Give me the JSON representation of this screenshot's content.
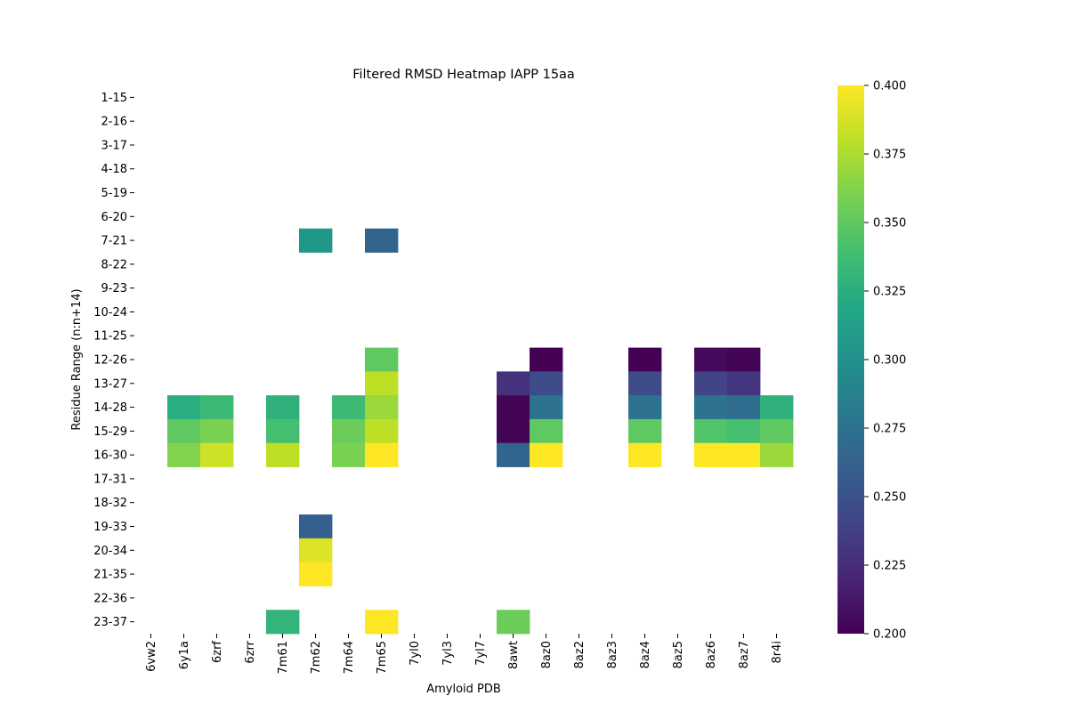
{
  "chart_data": {
    "type": "heatmap",
    "title": "Filtered RMSD Heatmap IAPP 15aa",
    "xlabel": "Amyloid PDB",
    "ylabel": "Residue Range (n:n+14)",
    "x_categories": [
      "6vw2",
      "6y1a",
      "6zrf",
      "6zrr",
      "7m61",
      "7m62",
      "7m64",
      "7m65",
      "7yl0",
      "7yl3",
      "7yl7",
      "8awt",
      "8az0",
      "8az2",
      "8az3",
      "8az4",
      "8az5",
      "8az6",
      "8az7",
      "8r4i"
    ],
    "y_categories": [
      "1-15",
      "2-16",
      "3-17",
      "4-18",
      "5-19",
      "6-20",
      "7-21",
      "8-22",
      "9-23",
      "10-24",
      "11-25",
      "12-26",
      "13-27",
      "14-28",
      "15-29",
      "16-30",
      "17-31",
      "18-32",
      "19-33",
      "20-34",
      "21-35",
      "22-36",
      "23-37"
    ],
    "colormap": "viridis",
    "colorbar": {
      "vmin": 0.2,
      "vmax": 0.4,
      "ticks": [
        0.2,
        0.225,
        0.25,
        0.275,
        0.3,
        0.325,
        0.35,
        0.375,
        0.4
      ],
      "tick_labels": [
        "0.200",
        "0.225",
        "0.250",
        "0.275",
        "0.300",
        "0.325",
        "0.350",
        "0.375",
        "0.400"
      ]
    },
    "cells": [
      {
        "row": "7-21",
        "col": "7m62",
        "value": 0.305
      },
      {
        "row": "7-21",
        "col": "7m65",
        "value": 0.265
      },
      {
        "row": "12-26",
        "col": "7m65",
        "value": 0.35
      },
      {
        "row": "12-26",
        "col": "8az0",
        "value": 0.2
      },
      {
        "row": "12-26",
        "col": "8az4",
        "value": 0.2
      },
      {
        "row": "12-26",
        "col": "8az6",
        "value": 0.205
      },
      {
        "row": "12-26",
        "col": "8az7",
        "value": 0.202
      },
      {
        "row": "13-27",
        "col": "7m65",
        "value": 0.38
      },
      {
        "row": "13-27",
        "col": "8awt",
        "value": 0.228
      },
      {
        "row": "13-27",
        "col": "8az0",
        "value": 0.245
      },
      {
        "row": "13-27",
        "col": "8az4",
        "value": 0.245
      },
      {
        "row": "13-27",
        "col": "8az6",
        "value": 0.24
      },
      {
        "row": "13-27",
        "col": "8az7",
        "value": 0.232
      },
      {
        "row": "14-28",
        "col": "6y1a",
        "value": 0.325
      },
      {
        "row": "14-28",
        "col": "6zrf",
        "value": 0.335
      },
      {
        "row": "14-28",
        "col": "7m61",
        "value": 0.328
      },
      {
        "row": "14-28",
        "col": "7m64",
        "value": 0.335
      },
      {
        "row": "14-28",
        "col": "7m65",
        "value": 0.37
      },
      {
        "row": "14-28",
        "col": "8awt",
        "value": 0.202
      },
      {
        "row": "14-28",
        "col": "8az0",
        "value": 0.275
      },
      {
        "row": "14-28",
        "col": "8az4",
        "value": 0.275
      },
      {
        "row": "14-28",
        "col": "8az6",
        "value": 0.275
      },
      {
        "row": "14-28",
        "col": "8az7",
        "value": 0.27
      },
      {
        "row": "14-28",
        "col": "8r4i",
        "value": 0.328
      },
      {
        "row": "15-29",
        "col": "6y1a",
        "value": 0.35
      },
      {
        "row": "15-29",
        "col": "6zrf",
        "value": 0.36
      },
      {
        "row": "15-29",
        "col": "7m61",
        "value": 0.34
      },
      {
        "row": "15-29",
        "col": "7m64",
        "value": 0.355
      },
      {
        "row": "15-29",
        "col": "7m65",
        "value": 0.38
      },
      {
        "row": "15-29",
        "col": "8awt",
        "value": 0.202
      },
      {
        "row": "15-29",
        "col": "8az0",
        "value": 0.35
      },
      {
        "row": "15-29",
        "col": "8az4",
        "value": 0.35
      },
      {
        "row": "15-29",
        "col": "8az6",
        "value": 0.345
      },
      {
        "row": "15-29",
        "col": "8az7",
        "value": 0.34
      },
      {
        "row": "15-29",
        "col": "8r4i",
        "value": 0.35
      },
      {
        "row": "16-30",
        "col": "6y1a",
        "value": 0.362
      },
      {
        "row": "16-30",
        "col": "6zrf",
        "value": 0.385
      },
      {
        "row": "16-30",
        "col": "7m61",
        "value": 0.38
      },
      {
        "row": "16-30",
        "col": "7m64",
        "value": 0.36
      },
      {
        "row": "16-30",
        "col": "7m65",
        "value": 0.4
      },
      {
        "row": "16-30",
        "col": "8awt",
        "value": 0.265
      },
      {
        "row": "16-30",
        "col": "8az0",
        "value": 0.4
      },
      {
        "row": "16-30",
        "col": "8az4",
        "value": 0.4
      },
      {
        "row": "16-30",
        "col": "8az6",
        "value": 0.4
      },
      {
        "row": "16-30",
        "col": "8az7",
        "value": 0.4
      },
      {
        "row": "16-30",
        "col": "8r4i",
        "value": 0.37
      },
      {
        "row": "19-33",
        "col": "7m62",
        "value": 0.26
      },
      {
        "row": "20-34",
        "col": "7m62",
        "value": 0.39
      },
      {
        "row": "21-35",
        "col": "7m62",
        "value": 0.4
      },
      {
        "row": "23-37",
        "col": "7m61",
        "value": 0.33
      },
      {
        "row": "23-37",
        "col": "7m65",
        "value": 0.4
      },
      {
        "row": "23-37",
        "col": "8awt",
        "value": 0.355
      }
    ]
  }
}
